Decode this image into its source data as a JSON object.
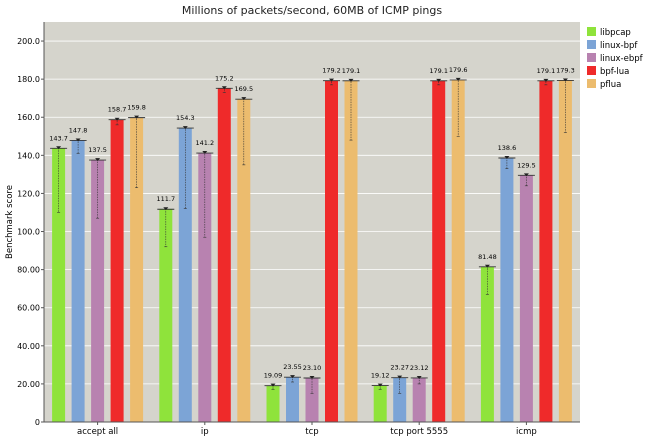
{
  "chart_data": {
    "type": "bar",
    "title": "Millions of packets/second, 60MB of ICMP pings",
    "ylabel": "Benchmark score",
    "xlabel": "",
    "ylim": [
      0,
      210
    ],
    "yticks": [
      0,
      20.0,
      40.0,
      60.0,
      80.0,
      100.0,
      120.0,
      140.0,
      160.0,
      180.0,
      200.0
    ],
    "ytick_labels": [
      "0",
      "20.00",
      "40.00",
      "60.00",
      "80.00",
      "100.0",
      "120.0",
      "140.0",
      "160.0",
      "180.0",
      "200.0"
    ],
    "grid": true,
    "legend_position": "right",
    "background_color": "#d5d4cc",
    "categories": [
      "accept all",
      "ip",
      "tcp",
      "tcp port 5555",
      "icmp"
    ],
    "series": [
      {
        "name": "libpcap",
        "color": "#8fe33b",
        "values": [
          143.7,
          111.7,
          19.09,
          19.12,
          81.48
        ],
        "labels": [
          "143.7",
          "111.7",
          "19.09",
          "19.12",
          "81.48"
        ],
        "error_low": [
          110,
          92,
          17,
          17,
          67
        ],
        "error_high": [
          144,
          112,
          19.5,
          19.5,
          82
        ]
      },
      {
        "name": "linux-bpf",
        "color": "#7ca4d6",
        "values": [
          147.8,
          154.3,
          23.55,
          23.27,
          138.6
        ],
        "labels": [
          "147.8",
          "154.3",
          "23.55",
          "23.27",
          "138.6"
        ],
        "error_low": [
          141,
          112,
          21,
          15,
          133
        ],
        "error_high": [
          148.5,
          155,
          24,
          24,
          139
        ]
      },
      {
        "name": "linux-ebpf",
        "color": "#b882b0",
        "values": [
          137.5,
          141.2,
          23.1,
          23.12,
          129.5
        ],
        "labels": [
          "137.5",
          "141.2",
          "23.10",
          "23.12",
          "129.5"
        ],
        "error_low": [
          107,
          97,
          15,
          20,
          124
        ],
        "error_high": [
          138,
          142,
          24,
          23.5,
          130
        ]
      },
      {
        "name": "bpf-lua",
        "color": "#ef2a2a",
        "values": [
          158.7,
          175.2,
          179.2,
          179.1,
          179.1
        ],
        "labels": [
          "158.7",
          "175.2",
          "179.2",
          "179.1",
          "179.1"
        ],
        "error_low": [
          156,
          173,
          177,
          177,
          177
        ],
        "error_high": [
          159.5,
          176,
          180,
          180,
          180
        ]
      },
      {
        "name": "pflua",
        "color": "#ecbc6e",
        "values": [
          159.8,
          169.5,
          179.1,
          179.6,
          179.3
        ],
        "labels": [
          "159.8",
          "169.5",
          "179.1",
          "179.6",
          "179.3"
        ],
        "error_low": [
          123,
          135,
          148,
          150,
          152
        ],
        "error_high": [
          160.5,
          170,
          180,
          180.5,
          180
        ]
      }
    ]
  }
}
